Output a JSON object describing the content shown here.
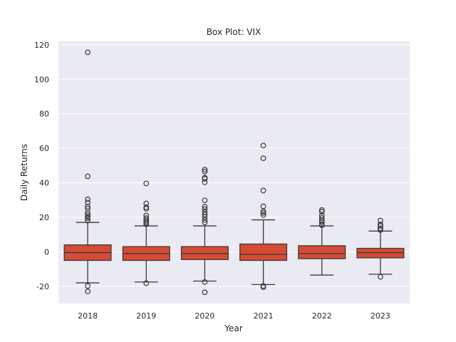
{
  "chart_data": {
    "type": "box",
    "title": "Box Plot: VIX",
    "xlabel": "Year",
    "ylabel": "Daily Returns",
    "ylim": [
      -30,
      122
    ],
    "yticks": [
      -20,
      0,
      20,
      40,
      60,
      80,
      100,
      120
    ],
    "grid": true,
    "colors": {
      "background": "#eaeaf2",
      "grid": "#ffffff",
      "box_fill": "#d64b36",
      "line": "#3a3a3a"
    },
    "categories": [
      "2018",
      "2019",
      "2020",
      "2021",
      "2022",
      "2023"
    ],
    "boxes": [
      {
        "q1": -5.0,
        "median": -0.5,
        "q3": 4.0,
        "whisker_low": -18.0,
        "whisker_high": 17.0,
        "outliers": [
          115.6,
          43.7,
          30.4,
          28.6,
          26.2,
          25.0,
          22.5,
          21.3,
          20.3,
          19.4,
          18.0,
          -19.8,
          -23.0
        ]
      },
      {
        "q1": -5.0,
        "median": -1.0,
        "q3": 3.0,
        "whisker_low": -17.5,
        "whisker_high": 15.0,
        "outliers": [
          39.6,
          28.0,
          25.8,
          25.0,
          21.0,
          19.5,
          18.5,
          17.6,
          16.8,
          16.0,
          -18.2
        ]
      },
      {
        "q1": -4.5,
        "median": -1.0,
        "q3": 3.0,
        "whisker_low": -17.0,
        "whisker_high": 15.0,
        "outliers": [
          47.6,
          46.5,
          43.0,
          42.3,
          40.3,
          29.8,
          26.1,
          24.7,
          23.0,
          21.6,
          20.2,
          18.5,
          17.0,
          -17.5,
          -23.5
        ]
      },
      {
        "q1": -5.0,
        "median": -1.5,
        "q3": 4.5,
        "whisker_low": -19.0,
        "whisker_high": 18.5,
        "outliers": [
          61.6,
          54.2,
          35.5,
          26.3,
          23.4,
          22.5,
          21.3,
          -19.8,
          -20.5
        ]
      },
      {
        "q1": -4.0,
        "median": -1.0,
        "q3": 3.5,
        "whisker_low": -13.5,
        "whisker_high": 15.0,
        "outliers": [
          24.2,
          23.2,
          21.0,
          19.6,
          18.1,
          17.2,
          16.0,
          15.4
        ]
      },
      {
        "q1": -3.5,
        "median": -0.5,
        "q3": 2.0,
        "whisker_low": -13.0,
        "whisker_high": 12.0,
        "outliers": [
          18.1,
          15.9,
          15.0,
          13.6,
          12.6,
          -14.5
        ]
      }
    ]
  }
}
